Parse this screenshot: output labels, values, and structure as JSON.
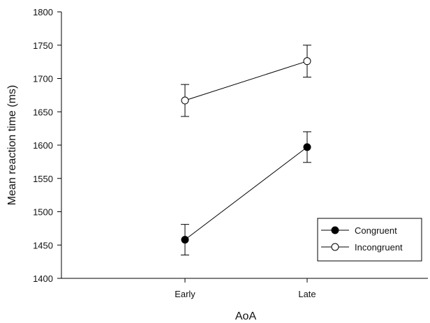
{
  "colors": {
    "background": "#ffffff",
    "axis": "#000000",
    "series": "#000000"
  },
  "chart_data": {
    "type": "line",
    "title": "",
    "xlabel": "AoA",
    "ylabel": "Mean reaction time (ms)",
    "categories": [
      "Early",
      "Late"
    ],
    "ylim": [
      1400,
      1800
    ],
    "yticks": [
      1400,
      1450,
      1500,
      1550,
      1600,
      1650,
      1700,
      1750,
      1800
    ],
    "grid": false,
    "legend_position": "bottom-right",
    "series": [
      {
        "name": "Congruent",
        "marker": "filled-circle",
        "values": [
          1458,
          1597
        ],
        "error": [
          23,
          23
        ]
      },
      {
        "name": "Incongruent",
        "marker": "open-circle",
        "values": [
          1667,
          1726
        ],
        "error": [
          24,
          24
        ]
      }
    ]
  }
}
